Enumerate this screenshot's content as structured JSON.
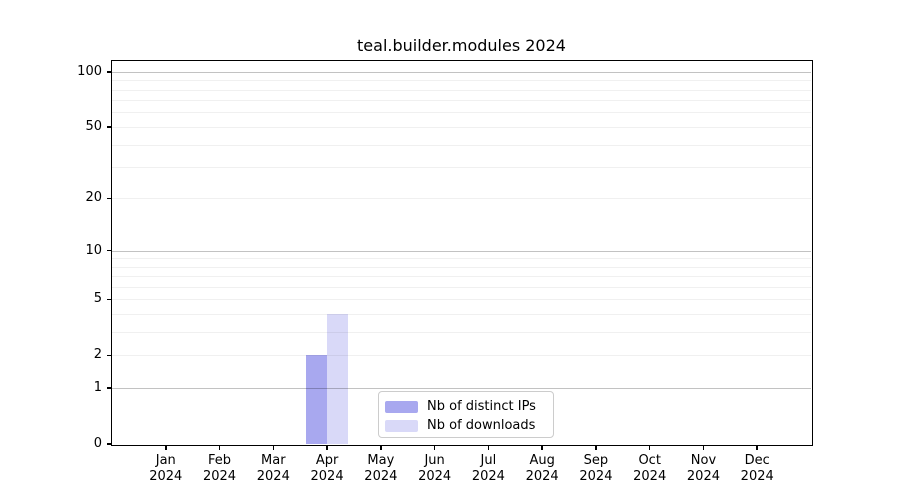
{
  "chart_data": {
    "type": "bar",
    "title": "teal.builder.modules 2024",
    "categories": [
      "Jan 2024",
      "Feb 2024",
      "Mar 2024",
      "Apr 2024",
      "May 2024",
      "Jun 2024",
      "Jul 2024",
      "Aug 2024",
      "Sep 2024",
      "Oct 2024",
      "Nov 2024",
      "Dec 2024"
    ],
    "month_labels": [
      "Jan",
      "Feb",
      "Mar",
      "Apr",
      "May",
      "Jun",
      "Jul",
      "Aug",
      "Sep",
      "Oct",
      "Nov",
      "Dec"
    ],
    "year_label": "2024",
    "series": [
      {
        "name": "Nb of distinct IPs",
        "color": "#a8a8ef",
        "values": [
          0,
          0,
          0,
          2,
          0,
          0,
          0,
          0,
          0,
          0,
          0,
          0
        ]
      },
      {
        "name": "Nb of downloads",
        "color": "#d9d9f8",
        "values": [
          0,
          0,
          0,
          4,
          0,
          0,
          0,
          0,
          0,
          0,
          0,
          0
        ]
      }
    ],
    "y_axis": {
      "scale": "log10(1+x)",
      "tick_values": [
        0,
        1,
        2,
        5,
        10,
        20,
        50,
        100
      ],
      "minor_gridlines": [
        2,
        3,
        4,
        5,
        6,
        7,
        8,
        9,
        20,
        30,
        40,
        50,
        60,
        70,
        80,
        90
      ],
      "major_gridlines": [
        1,
        10,
        100
      ],
      "ylim": [
        0,
        100
      ]
    },
    "xlabel": "",
    "ylabel": "",
    "grid": "horizontal",
    "legend": {
      "position": "lower center",
      "items": [
        "Nb of distinct IPs",
        "Nb of downloads"
      ]
    }
  },
  "colors": {
    "background": "#ffffff",
    "spine": "#000000",
    "text": "#000000",
    "major_grid": "rgba(0,0,0,0.24)",
    "minor_grid": "rgba(0,0,0,0.06)",
    "legend_border": "#cccccc"
  }
}
